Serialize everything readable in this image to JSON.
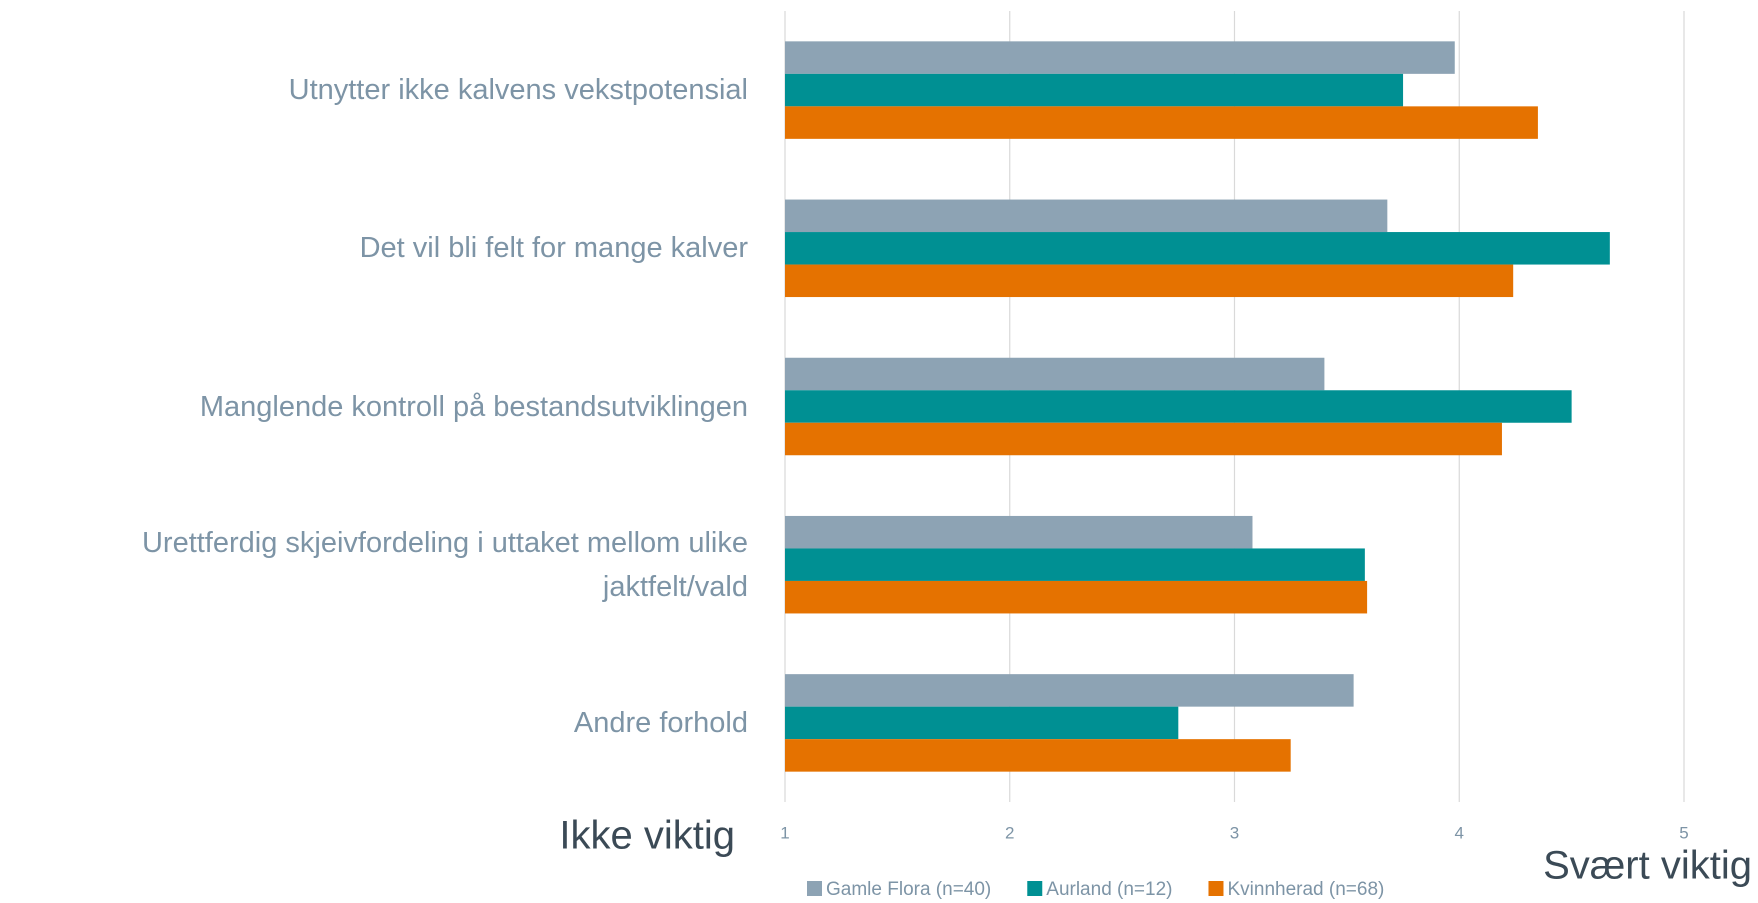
{
  "chart_data": {
    "type": "hbar",
    "categories": [
      "Utnytter ikke kalvens vekstpotensial",
      "Det vil bli felt for mange kalver",
      "Manglende kontroll på bestandsutviklingen",
      "Urettferdig skjeivfordeling i uttaket mellom ulike jaktfelt/vald",
      "Andre forhold"
    ],
    "series": [
      {
        "name": "Gamle Flora (n=40)",
        "color": "#8da3b4",
        "values": [
          3.98,
          3.68,
          3.4,
          3.08,
          3.53
        ]
      },
      {
        "name": "Aurland (n=12)",
        "color": "#009093",
        "values": [
          3.75,
          4.67,
          4.5,
          3.58,
          2.75
        ]
      },
      {
        "name": "Kvinnherad (n=68)",
        "color": "#e57200",
        "values": [
          4.35,
          4.24,
          4.19,
          3.59,
          3.25
        ]
      }
    ],
    "xlim": [
      1,
      5
    ],
    "xticks": [
      1,
      2,
      3,
      4,
      5
    ],
    "grid": true,
    "annotations": [
      "Ikke viktig",
      "Svært viktig"
    ]
  }
}
